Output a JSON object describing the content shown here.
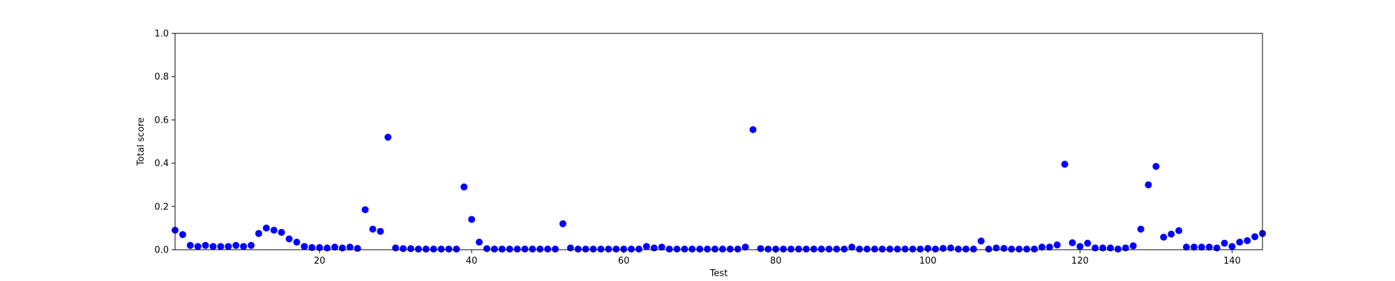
{
  "chart_data": {
    "type": "scatter",
    "title": "",
    "xlabel": "Test",
    "ylabel": "Total score",
    "xlim": [
      1,
      144
    ],
    "ylim": [
      0,
      1.0
    ],
    "x_ticks": [
      20,
      40,
      60,
      80,
      100,
      120,
      140
    ],
    "y_ticks": [
      "0.0",
      "0.2",
      "0.4",
      "0.6",
      "0.8",
      "1.0"
    ],
    "grid": false,
    "marker_color": "#0000ff",
    "series": [
      {
        "x": [
          1,
          2,
          3,
          4,
          5,
          6,
          7,
          8,
          9,
          10,
          11,
          12,
          13,
          14,
          15,
          16,
          17,
          18,
          19,
          20,
          21,
          22,
          23,
          24,
          25,
          26,
          27,
          28,
          29,
          30,
          31,
          32,
          33,
          34,
          35,
          36,
          37,
          38,
          39,
          40,
          41,
          42,
          43,
          44,
          45,
          46,
          47,
          48,
          49,
          50,
          51,
          52,
          53,
          54,
          55,
          56,
          57,
          58,
          59,
          60,
          61,
          62,
          63,
          64,
          65,
          66,
          67,
          68,
          69,
          70,
          71,
          72,
          73,
          74,
          75,
          76,
          77,
          78,
          79,
          80,
          81,
          82,
          83,
          84,
          85,
          86,
          87,
          88,
          89,
          90,
          91,
          92,
          93,
          94,
          95,
          96,
          97,
          98,
          99,
          100,
          101,
          102,
          103,
          104,
          105,
          106,
          107,
          108,
          109,
          110,
          111,
          112,
          113,
          114,
          115,
          116,
          117,
          118,
          119,
          120,
          121,
          122,
          123,
          124,
          125,
          126,
          127,
          128,
          129,
          130,
          131,
          132,
          133,
          134,
          135,
          136,
          137,
          138,
          139,
          140,
          141,
          142,
          143,
          144
        ],
        "y": [
          0.09,
          0.07,
          0.02,
          0.015,
          0.02,
          0.015,
          0.015,
          0.015,
          0.02,
          0.015,
          0.02,
          0.075,
          0.1,
          0.09,
          0.08,
          0.05,
          0.035,
          0.015,
          0.01,
          0.01,
          0.008,
          0.012,
          0.008,
          0.012,
          0.006,
          0.185,
          0.095,
          0.085,
          0.52,
          0.008,
          0.005,
          0.005,
          0.003,
          0.003,
          0.003,
          0.003,
          0.003,
          0.003,
          0.29,
          0.14,
          0.035,
          0.005,
          0.003,
          0.003,
          0.003,
          0.003,
          0.003,
          0.003,
          0.003,
          0.003,
          0.003,
          0.12,
          0.008,
          0.003,
          0.003,
          0.003,
          0.003,
          0.003,
          0.003,
          0.003,
          0.003,
          0.003,
          0.015,
          0.008,
          0.012,
          0.003,
          0.003,
          0.003,
          0.003,
          0.003,
          0.003,
          0.003,
          0.003,
          0.003,
          0.003,
          0.012,
          0.555,
          0.005,
          0.003,
          0.003,
          0.003,
          0.003,
          0.003,
          0.003,
          0.003,
          0.003,
          0.003,
          0.003,
          0.003,
          0.012,
          0.003,
          0.003,
          0.003,
          0.003,
          0.003,
          0.003,
          0.003,
          0.003,
          0.003,
          0.006,
          0.003,
          0.006,
          0.008,
          0.003,
          0.003,
          0.003,
          0.04,
          0.003,
          0.008,
          0.006,
          0.003,
          0.003,
          0.003,
          0.003,
          0.012,
          0.012,
          0.022,
          0.395,
          0.032,
          0.015,
          0.03,
          0.008,
          0.008,
          0.008,
          0.003,
          0.008,
          0.018,
          0.095,
          0.3,
          0.385,
          0.058,
          0.072,
          0.088,
          0.012,
          0.012,
          0.012,
          0.012,
          0.008,
          0.03,
          0.015,
          0.035,
          0.042,
          0.06,
          0.075
        ]
      }
    ]
  }
}
